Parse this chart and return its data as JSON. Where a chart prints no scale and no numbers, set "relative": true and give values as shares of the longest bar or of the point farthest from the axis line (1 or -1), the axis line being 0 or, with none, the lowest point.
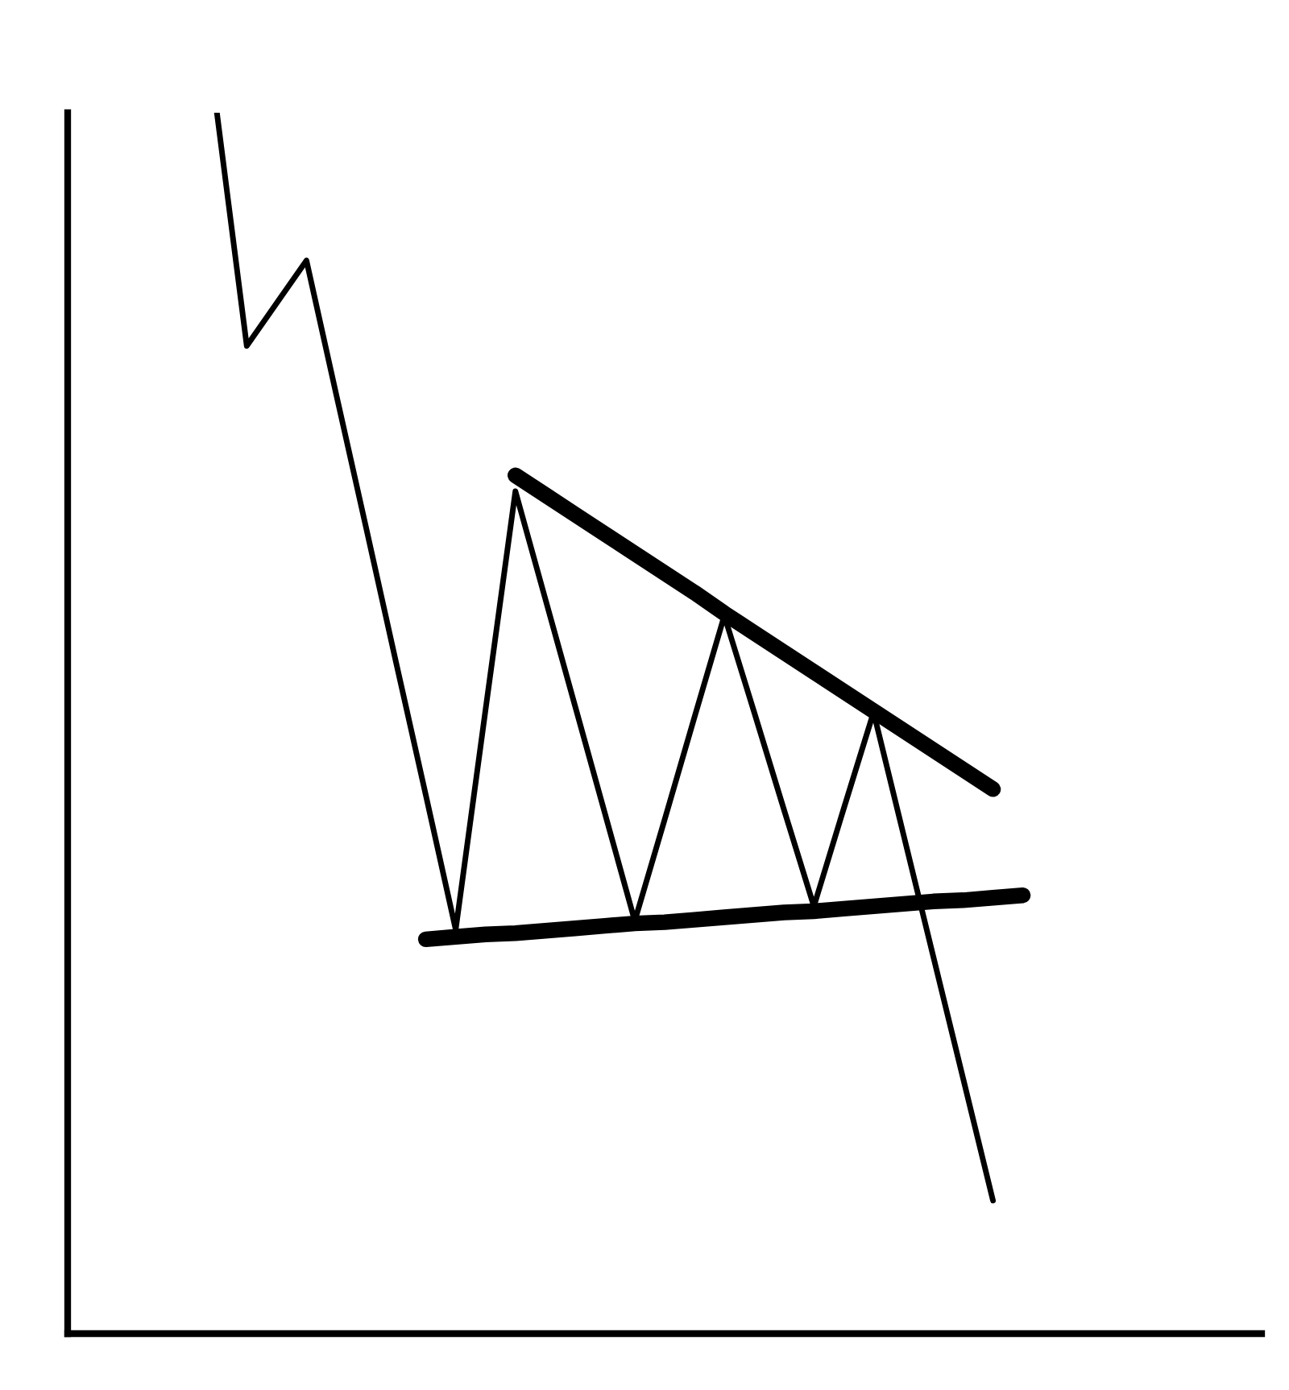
{
  "chart_data": {
    "type": "line",
    "relative": true,
    "categories": [
      null,
      null,
      null,
      null,
      null,
      null,
      null,
      null,
      null,
      null,
      null,
      null,
      null,
      null,
      null,
      null,
      null,
      null,
      null,
      null,
      null,
      null,
      null,
      null,
      null,
      null,
      null,
      null,
      null,
      null,
      null,
      null,
      null,
      null,
      null,
      null,
      null,
      null,
      null,
      null,
      null
    ],
    "series": [
      {
        "color": "#000000",
        "values": [
          null,
          null,
          null,
          null,
          null,
          1.0,
          0.809,
          0.844,
          0.879,
          0.769,
          0.66,
          0.55,
          0.441,
          0.331,
          0.511,
          0.69,
          0.602,
          0.514,
          0.426,
          0.338,
          0.421,
          0.505,
          0.588,
          0.509,
          0.429,
          0.35,
          0.43,
          0.509,
          0.409,
          0.309,
          0.209,
          0.109,
          null,
          null,
          null,
          null,
          null,
          null,
          null,
          null,
          null
        ]
      },
      {
        "color": "#000000",
        "values": [
          null,
          null,
          null,
          null,
          null,
          null,
          null,
          null,
          null,
          null,
          null,
          null,
          null,
          null,
          null,
          0.703,
          0.687,
          0.671,
          0.655,
          0.639,
          0.623,
          0.607,
          0.59,
          0.574,
          0.558,
          0.542,
          0.526,
          0.51,
          0.494,
          0.478,
          0.462,
          0.446,
          null,
          null,
          null,
          null,
          null,
          null,
          null,
          null,
          null
        ]
      },
      {
        "color": "#000000",
        "values": [
          null,
          null,
          null,
          null,
          null,
          null,
          null,
          null,
          null,
          null,
          null,
          null,
          0.323,
          0.325,
          0.327,
          0.328,
          0.33,
          0.332,
          0.334,
          0.336,
          0.337,
          0.339,
          0.341,
          0.343,
          0.345,
          0.346,
          0.348,
          0.35,
          0.352,
          0.354,
          0.355,
          0.357,
          0.359,
          null,
          null,
          null,
          null,
          null,
          null,
          null,
          null
        ]
      }
    ]
  }
}
